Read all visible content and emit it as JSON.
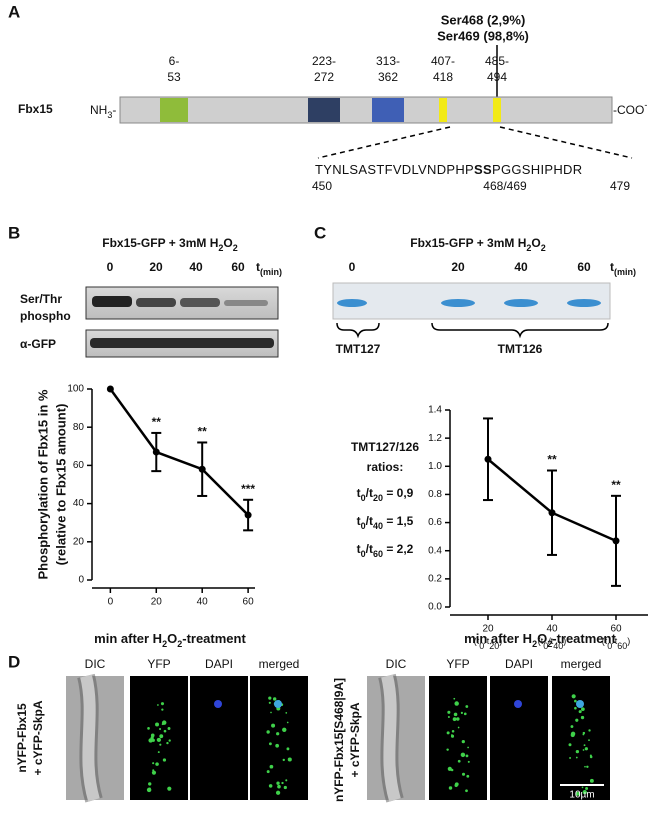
{
  "panels": {
    "A": {
      "letter": "A",
      "protein": "Fbx15",
      "n_term": "NH3-",
      "c_term": "-COO-",
      "sites": [
        "Ser468 (2,9%)",
        "Ser469 (98,8%)"
      ],
      "domains": [
        {
          "range": [
            "6-",
            "53"
          ],
          "color": "#8fbc3a"
        },
        {
          "range": [
            "223-",
            "272"
          ],
          "color": "#2e3f63"
        },
        {
          "range": [
            "313-",
            "362"
          ],
          "color": "#3f5fb5"
        },
        {
          "range": [
            "407-",
            "418"
          ],
          "color": "#f2ea16"
        },
        {
          "range": [
            "485-",
            "494"
          ],
          "color": "#f2ea16"
        }
      ],
      "sequence": {
        "pre": "TYNLSASTFVDLVNDPHP",
        "bold": "SS",
        "post": "PGGSHIPHDR",
        "start": "450",
        "site": "468/469",
        "end": "479"
      }
    },
    "B": {
      "letter": "B",
      "title": "Fbx15-GFP + 3mM H2O2",
      "times": [
        "0",
        "20",
        "40",
        "60"
      ],
      "time_unit": "t(min)",
      "blots": [
        [
          "Ser/Thr",
          "phospho"
        ],
        [
          "α-GFP"
        ]
      ]
    },
    "C": {
      "letter": "C",
      "title": "Fbx15-GFP + 3mM H2O2",
      "times": [
        "0",
        "20",
        "40",
        "60"
      ],
      "time_unit": "t(min)",
      "tmt": [
        "TMT127",
        "TMT126"
      ],
      "ratio_title": [
        "TMT127/126",
        "ratios:"
      ],
      "ratios": [
        "t0/t20 = 0,9",
        "t0/t40 = 1,5",
        "t0/t60 = 2,2"
      ]
    },
    "D": {
      "letter": "D",
      "columns": [
        "DIC",
        "YFP",
        "DAPI",
        "merged"
      ],
      "strains": [
        [
          "nYFP-Fbx15",
          "+ cYFP-SkpA"
        ],
        [
          "nYFP-Fbx15[S468|9A]",
          "+ cYFP-SkpA"
        ]
      ],
      "scale_bar": "10µm"
    }
  },
  "chart_data": [
    {
      "type": "line",
      "y_label": [
        "Phosphorylation of Fbx15 in %",
        "(relative to Fbx15 amount)"
      ],
      "x_label": "min after H2O2-treatment",
      "x": [
        0,
        20,
        40,
        60
      ],
      "xlim": [
        -8,
        63
      ],
      "xticks": [
        0,
        20,
        40,
        60
      ],
      "ylim": [
        0,
        100
      ],
      "yticks": [
        0,
        20,
        40,
        60,
        80,
        100
      ],
      "series": [
        {
          "color": "#000000",
          "values": [
            100,
            67,
            58,
            34
          ],
          "errors": [
            0,
            10,
            14,
            8
          ]
        }
      ],
      "annotations": [
        {
          "x": 20,
          "text": "**"
        },
        {
          "x": 40,
          "text": "**"
        },
        {
          "x": 60,
          "text": "***"
        }
      ]
    },
    {
      "type": "line",
      "x_label": "min after H2O2-treatment",
      "categories": [
        "20",
        "40",
        "60"
      ],
      "category_notes": [
        "(t0/t20)",
        "(t0/t40)",
        "(t0/t60)"
      ],
      "ylim": [
        0,
        1.4
      ],
      "yticks": [
        {
          "value": 0,
          "label": "0.0"
        },
        0.2,
        0.4,
        0.6,
        0.8,
        {
          "value": 1,
          "label": "1.0"
        },
        1.2,
        1.4
      ],
      "series": [
        {
          "color": "#000000",
          "values": [
            1.05,
            0.67,
            0.47
          ],
          "errors": [
            0.29,
            0.3,
            0.32
          ]
        }
      ],
      "annotations": [
        {
          "category": "40",
          "text": "**"
        },
        {
          "category": "60",
          "text": "**"
        }
      ]
    }
  ]
}
